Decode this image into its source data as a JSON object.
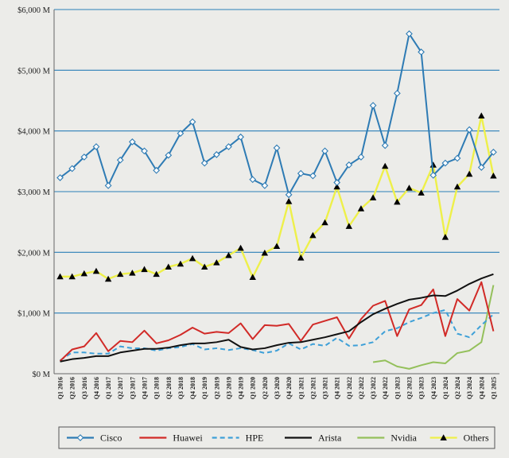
{
  "chart_data": {
    "type": "line",
    "title": "",
    "xlabel": "",
    "ylabel": "",
    "ylim": [
      0,
      6000
    ],
    "y_ticks": [
      0,
      1000,
      2000,
      3000,
      4000,
      5000,
      6000
    ],
    "y_tick_labels": [
      "$0 M",
      "$1,000 M",
      "$2,000 M",
      "$3,000 M",
      "$4,000 M",
      "$5,000 M",
      "$6,000 M"
    ],
    "grid": "horizontal",
    "legend_position": "bottom",
    "categories": [
      "Q1 2016",
      "Q2 2016",
      "Q3 2016",
      "Q4 2016",
      "Q1 2017",
      "Q2 2017",
      "Q3 2017",
      "Q4 2017",
      "Q1 2018",
      "Q2 2018",
      "Q3 2018",
      "Q4 2018",
      "Q1 2019",
      "Q2 2019",
      "Q3 2019",
      "Q4 2019",
      "Q1 2020",
      "Q2 2020",
      "Q3 2020",
      "Q4 2020",
      "Q1 2021",
      "Q2 2021",
      "Q3 2021",
      "Q4 2021",
      "Q1 2022",
      "Q2 2022",
      "Q3 2022",
      "Q4 2022",
      "Q1 2023",
      "Q2 2023",
      "Q3 2023",
      "Q4 2023",
      "Q1 2024",
      "Q2 2024",
      "Q3 2024",
      "Q4 2024",
      "Q1 2025"
    ],
    "series": [
      {
        "name": "Cisco",
        "color": "#2e7bb4",
        "dash": "solid",
        "marker": "diamond",
        "values": [
          3230,
          3380,
          3570,
          3740,
          3100,
          3520,
          3820,
          3670,
          3350,
          3600,
          3960,
          4150,
          3470,
          3610,
          3740,
          3900,
          3200,
          3100,
          3720,
          2950,
          3300,
          3260,
          3670,
          3150,
          3440,
          3570,
          4420,
          3760,
          4620,
          5600,
          5300,
          3270,
          3470,
          3550,
          4020,
          3400,
          3650
        ]
      },
      {
        "name": "Huawei",
        "color": "#d12a27",
        "dash": "solid",
        "marker": "none",
        "values": [
          210,
          400,
          450,
          670,
          370,
          540,
          520,
          710,
          500,
          550,
          640,
          760,
          660,
          690,
          670,
          830,
          570,
          800,
          790,
          820,
          540,
          810,
          870,
          930,
          580,
          900,
          1120,
          1200,
          620,
          1060,
          1130,
          1390,
          620,
          1230,
          1040,
          1510,
          700
        ]
      },
      {
        "name": "HPE",
        "color": "#3ea0d8",
        "dash": "dashed",
        "marker": "none",
        "values": [
          220,
          350,
          350,
          330,
          330,
          450,
          420,
          420,
          380,
          420,
          440,
          490,
          400,
          420,
          390,
          420,
          390,
          340,
          380,
          500,
          400,
          490,
          460,
          590,
          460,
          470,
          520,
          700,
          750,
          850,
          920,
          1000,
          1050,
          660,
          600,
          800,
          980
        ]
      },
      {
        "name": "Arista",
        "color": "#111111",
        "dash": "solid",
        "marker": "none",
        "values": [
          200,
          240,
          260,
          290,
          290,
          350,
          380,
          410,
          410,
          430,
          470,
          500,
          500,
          520,
          560,
          440,
          400,
          420,
          470,
          510,
          520,
          560,
          600,
          650,
          700,
          850,
          980,
          1070,
          1150,
          1220,
          1250,
          1290,
          1280,
          1370,
          1480,
          1570,
          1640
        ]
      },
      {
        "name": "Nvidia",
        "color": "#94c05b",
        "dash": "solid",
        "marker": "none",
        "values": [
          null,
          null,
          null,
          null,
          null,
          null,
          null,
          null,
          null,
          null,
          null,
          null,
          null,
          null,
          null,
          null,
          null,
          null,
          null,
          null,
          null,
          null,
          null,
          null,
          null,
          null,
          190,
          220,
          120,
          80,
          140,
          190,
          170,
          340,
          380,
          520,
          1460
        ]
      },
      {
        "name": "Others",
        "color": "#eef04a",
        "dash": "solid",
        "marker": "triangle",
        "values": [
          1600,
          1600,
          1650,
          1690,
          1560,
          1640,
          1660,
          1720,
          1640,
          1760,
          1810,
          1900,
          1760,
          1830,
          1950,
          2070,
          1590,
          1990,
          2100,
          2840,
          1910,
          2280,
          2490,
          3080,
          2430,
          2720,
          2900,
          3420,
          2830,
          3060,
          2980,
          3440,
          2250,
          3080,
          3290,
          4250,
          3260
        ]
      }
    ]
  }
}
